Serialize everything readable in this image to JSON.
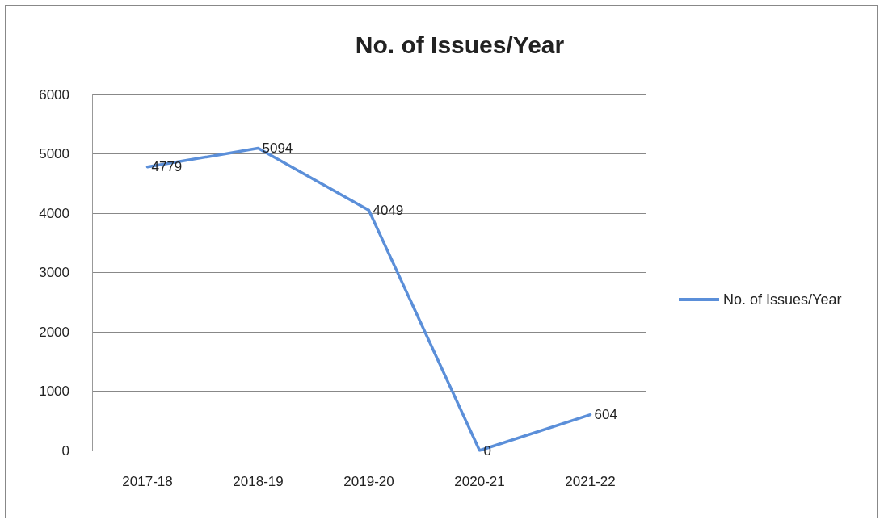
{
  "chart_data": {
    "type": "line",
    "title": "No. of Issues/Year",
    "categories": [
      "2017-18",
      "2018-19",
      "2019-20",
      "2020-21",
      "2021-22"
    ],
    "series": [
      {
        "name": "No. of Issues/Year",
        "color": "#5b8fd9",
        "values": [
          4779,
          5094,
          4049,
          0,
          604
        ]
      }
    ],
    "ylim": [
      0,
      6000
    ],
    "yticks": [
      0,
      1000,
      2000,
      3000,
      4000,
      5000,
      6000
    ],
    "grid": "y",
    "legend": "right",
    "marker": "none",
    "data_labels": true
  }
}
